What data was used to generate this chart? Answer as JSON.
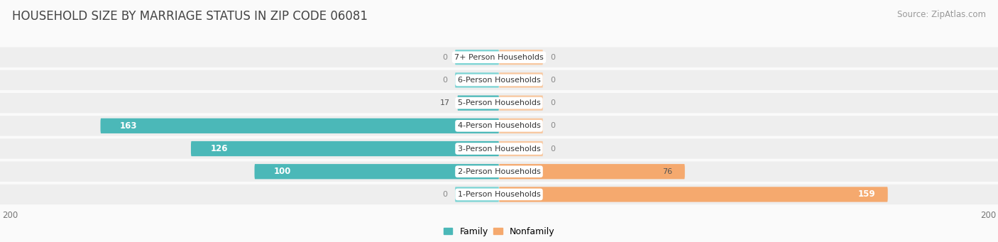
{
  "title": "HOUSEHOLD SIZE BY MARRIAGE STATUS IN ZIP CODE 06081",
  "source": "Source: ZipAtlas.com",
  "categories": [
    "7+ Person Households",
    "6-Person Households",
    "5-Person Households",
    "4-Person Households",
    "3-Person Households",
    "2-Person Households",
    "1-Person Households"
  ],
  "family_values": [
    0,
    0,
    17,
    163,
    126,
    100,
    0
  ],
  "nonfamily_values": [
    0,
    0,
    0,
    0,
    0,
    76,
    159
  ],
  "family_color": "#4BB8B8",
  "nonfamily_color": "#F5A96E",
  "zero_family_color": "#7DD4D4",
  "zero_nonfamily_color": "#F8C8A0",
  "xlim": 200,
  "bg_color": "#FAFAFA",
  "row_color_odd": "#EFEFEF",
  "row_color_even": "#E8E8E8",
  "title_color": "#444444",
  "source_color": "#999999",
  "title_fontsize": 12,
  "source_fontsize": 8.5,
  "tick_fontsize": 8.5,
  "value_fontsize": 8,
  "category_fontsize": 8
}
